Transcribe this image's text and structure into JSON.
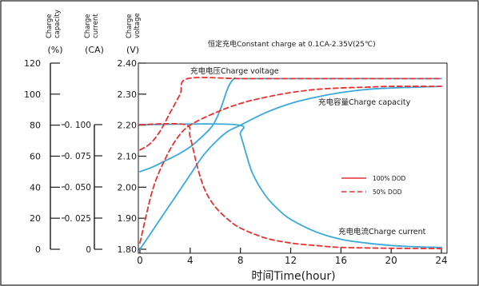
{
  "chart_data": {
    "type": "line",
    "title": "恒定充电Constant   charge   at   0.1CA-2.35V(25℃)",
    "xlabel": "时间Time(hour)",
    "x_ticks": [
      0,
      4,
      8,
      12,
      16,
      20,
      24
    ],
    "xlim": [
      0,
      24
    ],
    "axes": {
      "capacity": {
        "label_lines": [
          "Charge",
          "capacity"
        ],
        "unit": "(%)",
        "ticks": [
          "0",
          "20",
          "40",
          "60",
          "80",
          "100",
          "120"
        ],
        "range": [
          0,
          120
        ]
      },
      "current": {
        "label_lines": [
          "Charge",
          "current"
        ],
        "unit": "(CA)",
        "ticks": [
          "0",
          "0. 025",
          "0. 050",
          "0. 075",
          "0. 100"
        ],
        "range": [
          0,
          0.1
        ]
      },
      "voltage": {
        "label_lines": [
          "Charge",
          "voltage"
        ],
        "unit": "(V)",
        "ticks": [
          "1.80",
          "1.90",
          "2.00",
          "2.10",
          "2.20",
          "2.30",
          "2.40"
        ],
        "range": [
          1.8,
          2.4
        ]
      }
    },
    "annotations": {
      "voltage": "充电电压Charge   voltage",
      "capacity": "充电容量Charge   capacity",
      "current": "充电电流Charge   current"
    },
    "legend": {
      "position": "right",
      "entries": [
        {
          "label": "100% DOD",
          "style": "solid"
        },
        {
          "label": "50% DOD",
          "style": "dashed"
        }
      ]
    },
    "colors": {
      "dod100": "#39a9dc",
      "dod50": "#e8312f",
      "axis": "#1a1a1a",
      "border": "#1a1a1a"
    },
    "series": [
      {
        "name": "100% DOD",
        "quantity": "voltage",
        "style": "solid",
        "points": [
          [
            0,
            2.05
          ],
          [
            1,
            2.065
          ],
          [
            2,
            2.085
          ],
          [
            3,
            2.105
          ],
          [
            4,
            2.13
          ],
          [
            5,
            2.165
          ],
          [
            5.8,
            2.2
          ],
          [
            6.4,
            2.25
          ],
          [
            7,
            2.32
          ],
          [
            7.5,
            2.35
          ],
          [
            8,
            2.35
          ],
          [
            12,
            2.35
          ],
          [
            16,
            2.35
          ],
          [
            20,
            2.35
          ],
          [
            24,
            2.35
          ]
        ]
      },
      {
        "name": "100% DOD",
        "quantity": "capacity",
        "style": "solid",
        "points": [
          [
            0,
            0
          ],
          [
            1,
            12
          ],
          [
            2,
            24
          ],
          [
            3,
            36
          ],
          [
            4,
            48
          ],
          [
            5,
            60
          ],
          [
            6,
            69
          ],
          [
            7,
            76
          ],
          [
            8,
            80
          ],
          [
            10,
            88
          ],
          [
            12,
            94
          ],
          [
            14,
            98
          ],
          [
            16,
            101
          ],
          [
            18,
            103
          ],
          [
            20,
            104
          ],
          [
            22,
            104.5
          ],
          [
            24,
            105
          ]
        ]
      },
      {
        "name": "100% DOD",
        "quantity": "current",
        "style": "solid",
        "points": [
          [
            0,
            0.1
          ],
          [
            7.6,
            0.1
          ],
          [
            8,
            0.092
          ],
          [
            8.5,
            0.075
          ],
          [
            9,
            0.06
          ],
          [
            10,
            0.043
          ],
          [
            11,
            0.032
          ],
          [
            12,
            0.024
          ],
          [
            14,
            0.014
          ],
          [
            16,
            0.008
          ],
          [
            18,
            0.005
          ],
          [
            20,
            0.003
          ],
          [
            22,
            0.002
          ],
          [
            24,
            0.0015
          ]
        ]
      },
      {
        "name": "50% DOD",
        "quantity": "voltage",
        "style": "dashed",
        "points": [
          [
            0,
            2.12
          ],
          [
            0.8,
            2.14
          ],
          [
            1.6,
            2.18
          ],
          [
            2.4,
            2.24
          ],
          [
            3.2,
            2.3
          ],
          [
            3.8,
            2.35
          ],
          [
            8,
            2.35
          ],
          [
            12,
            2.35
          ],
          [
            16,
            2.35
          ],
          [
            20,
            2.35
          ],
          [
            24,
            2.35
          ]
        ]
      },
      {
        "name": "50% DOD",
        "quantity": "capacity",
        "style": "dashed",
        "points": [
          [
            0,
            4
          ],
          [
            1,
            38
          ],
          [
            2,
            58
          ],
          [
            3,
            72
          ],
          [
            4,
            80
          ],
          [
            6,
            88
          ],
          [
            8,
            94
          ],
          [
            10,
            98
          ],
          [
            12,
            101
          ],
          [
            14,
            103
          ],
          [
            16,
            104
          ],
          [
            18,
            104.5
          ],
          [
            20,
            105
          ],
          [
            24,
            105
          ]
        ]
      },
      {
        "name": "50% DOD",
        "quantity": "current",
        "style": "dashed",
        "points": [
          [
            0,
            0.1
          ],
          [
            3.6,
            0.1
          ],
          [
            4,
            0.09
          ],
          [
            4.6,
            0.065
          ],
          [
            5.2,
            0.047
          ],
          [
            6,
            0.034
          ],
          [
            7,
            0.024
          ],
          [
            8,
            0.017
          ],
          [
            10,
            0.009
          ],
          [
            12,
            0.005
          ],
          [
            14,
            0.003
          ],
          [
            16,
            0.0015
          ],
          [
            20,
            0.0008
          ],
          [
            24,
            0.0005
          ]
        ]
      }
    ]
  }
}
